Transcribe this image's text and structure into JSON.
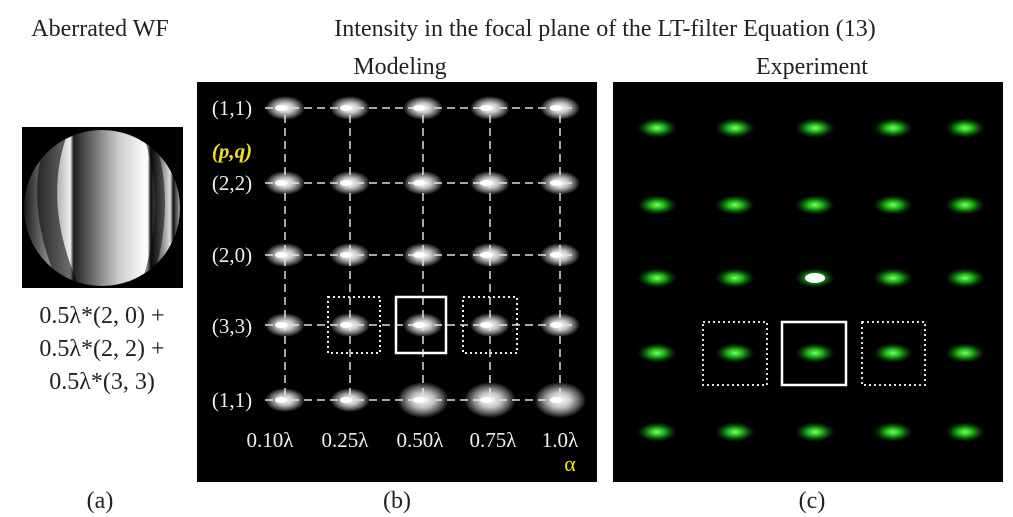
{
  "header": {
    "left_title": "Aberrated WF",
    "title": "Intensity in the focal plane of the LT-filter Equation (13)"
  },
  "panels": {
    "a": {
      "formula": [
        "0.5λ*(2, 0) +",
        "0.5λ*(2, 2) +",
        "0.5λ*(3, 3)"
      ],
      "caption": "(a)"
    },
    "b": {
      "title": "Modeling",
      "row_labels": [
        "(1,1)",
        "(2,2)",
        "(2,0)",
        "(3,3)",
        "(1,1)"
      ],
      "pq_label": "(p,q)",
      "col_labels": [
        "0.10λ",
        "0.25λ",
        "0.50λ",
        "0.75λ",
        "1.0λ"
      ],
      "alpha_label": "α",
      "caption": "(b)"
    },
    "c": {
      "title": "Experiment",
      "caption": "(c)"
    }
  }
}
